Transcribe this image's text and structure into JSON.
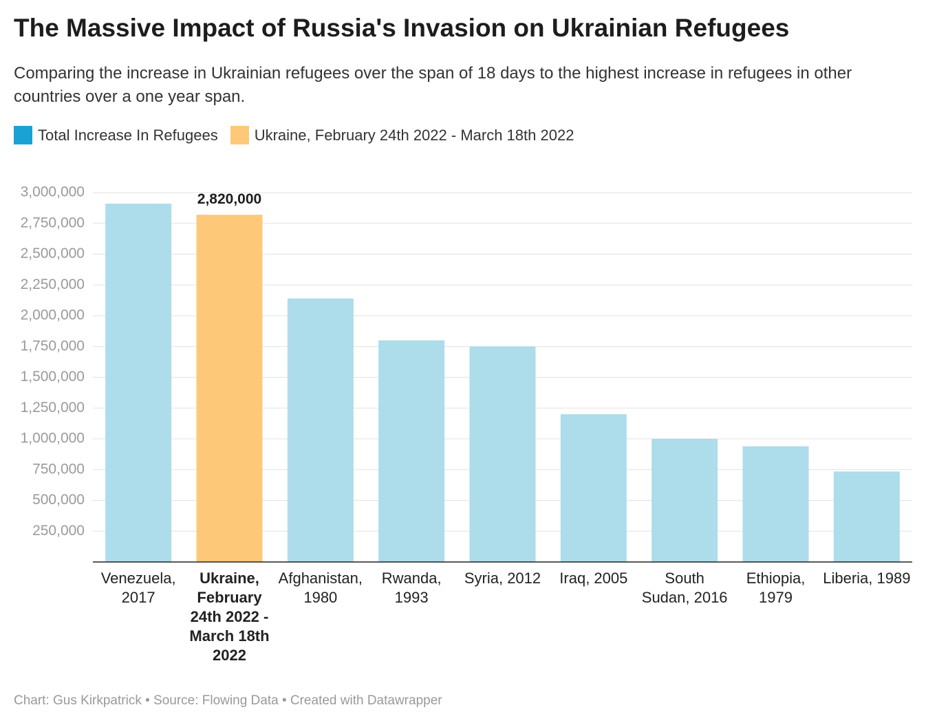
{
  "chart_data": {
    "type": "bar",
    "title": "The Massive Impact of Russia's Invasion on Ukrainian Refugees",
    "subtitle": "Comparing the increase in Ukrainian refugees over the span of 18 days to the highest increase in refugees in other countries over a one year span.",
    "legend": [
      {
        "name": "Total Increase In Refugees",
        "color": "#1ba2d4"
      },
      {
        "name": "Ukraine, February 24th 2022 - March 18th 2022",
        "color": "#fdc978"
      }
    ],
    "categories": [
      "Venezuela, 2017",
      "Ukraine, February 24th 2022 - March 18th 2022",
      "Afghanistan, 1980",
      "Rwanda, 1993",
      "Syria, 2012",
      "Iraq, 2005",
      "South Sudan, 2016",
      "Ethiopia, 1979",
      "Liberia, 1989"
    ],
    "values": [
      2910000,
      2820000,
      2140000,
      1800000,
      1750000,
      1200000,
      1000000,
      940000,
      735000
    ],
    "value_labels": [
      null,
      "2,820,000",
      null,
      null,
      null,
      null,
      null,
      null,
      null
    ],
    "colors": [
      "#addcea",
      "#fdc978",
      "#addcea",
      "#addcea",
      "#addcea",
      "#addcea",
      "#addcea",
      "#addcea",
      "#addcea"
    ],
    "ylim": [
      0,
      3000000
    ],
    "yticks": [
      {
        "value": 250000,
        "label": "250,000"
      },
      {
        "value": 500000,
        "label": "500,000"
      },
      {
        "value": 750000,
        "label": "750,000"
      },
      {
        "value": 1000000,
        "label": "1,000,000"
      },
      {
        "value": 1250000,
        "label": "1,250,000"
      },
      {
        "value": 1500000,
        "label": "1,500,000"
      },
      {
        "value": 1750000,
        "label": "1,750,000"
      },
      {
        "value": 2000000,
        "label": "2,000,000"
      },
      {
        "value": 2250000,
        "label": "2,250,000"
      },
      {
        "value": 2500000,
        "label": "2,500,000"
      },
      {
        "value": 2750000,
        "label": "2,750,000"
      },
      {
        "value": 3000000,
        "label": "3,000,000"
      }
    ],
    "grid": true,
    "footer": "Chart: Gus Kirkpatrick • Source: Flowing Data • Created with Datawrapper"
  }
}
